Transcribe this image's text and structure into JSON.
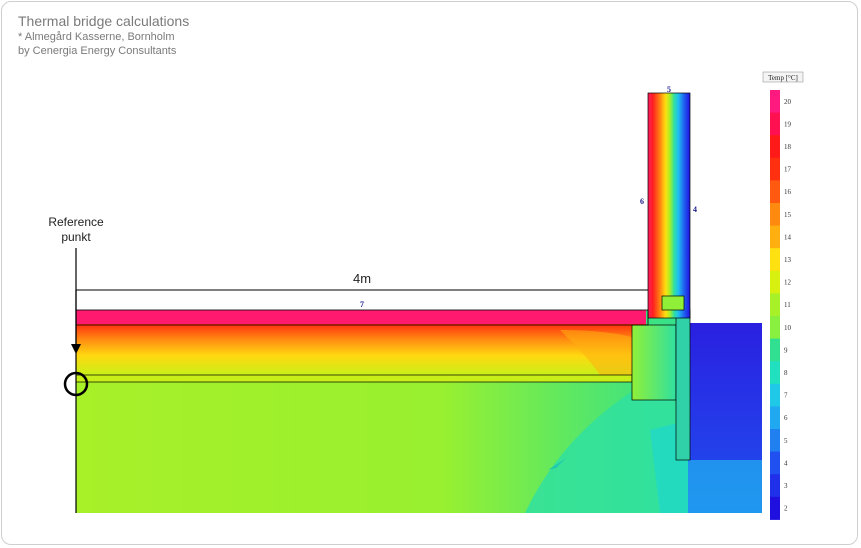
{
  "header": {
    "title": "Thermal bridge calculations",
    "subtitle_1": "* Almegård Kasserne, Bornholm",
    "subtitle_2": "by Cenergia Energy Consultants"
  },
  "annotations": {
    "reference_line_1": "Reference",
    "reference_line_2": "punkt",
    "dimension": "4m"
  },
  "node_labels": [
    "5",
    "6",
    "4",
    "7"
  ],
  "legend": {
    "title": "Temp [°C]",
    "ticks": [
      "20",
      "19",
      "18",
      "17",
      "16",
      "15",
      "14",
      "13",
      "12",
      "11",
      "10",
      "9",
      "8",
      "7",
      "6",
      "5",
      "4",
      "3",
      "2"
    ],
    "colors": [
      "#ff1a80",
      "#ff1050",
      "#ff1a1a",
      "#ff3010",
      "#ff5a10",
      "#ff8a10",
      "#ffb010",
      "#ffe010",
      "#d8f010",
      "#a8f028",
      "#8af040",
      "#30e090",
      "#20e0c0",
      "#20c8e8",
      "#20a8f0",
      "#2080f0",
      "#2050f0",
      "#2030e8",
      "#2010e0"
    ]
  },
  "palette": {
    "soil": "#a8f028",
    "outside": "#2a2ae0"
  }
}
